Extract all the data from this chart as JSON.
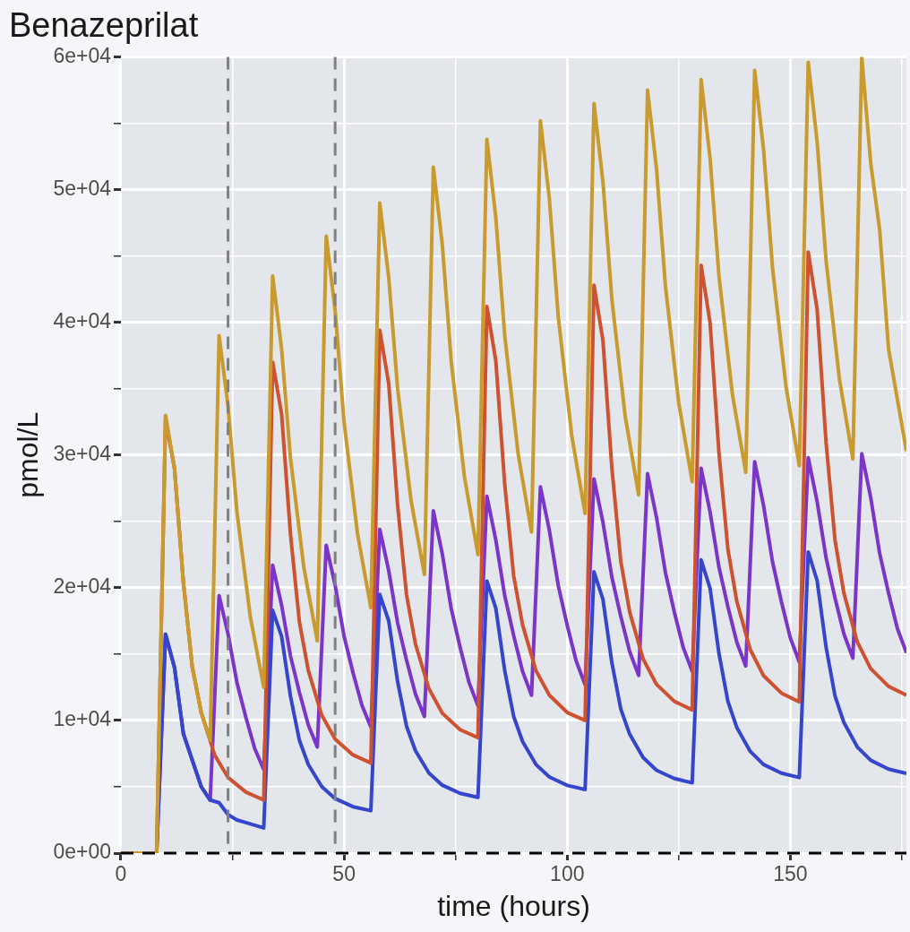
{
  "chart_data": {
    "type": "line",
    "title": "Benazeprilat",
    "xlabel": "time (hours)",
    "ylabel": "pmol/L",
    "xlim": [
      0,
      176
    ],
    "ylim": [
      0,
      60000
    ],
    "xticks": [
      0,
      {
        "value": 25,
        "label": null
      },
      50,
      {
        "value": 75,
        "label": null
      },
      100,
      {
        "value": 125,
        "label": null
      },
      150,
      {
        "value": 175,
        "label": null
      }
    ],
    "yticks": [
      {
        "value": 0,
        "label": "0e+00"
      },
      {
        "value": 5000,
        "label": null
      },
      {
        "value": 10000,
        "label": "1e+04"
      },
      {
        "value": 15000,
        "label": null
      },
      {
        "value": 20000,
        "label": "2e+04"
      },
      {
        "value": 25000,
        "label": null
      },
      {
        "value": 30000,
        "label": "3e+04"
      },
      {
        "value": 35000,
        "label": null
      },
      {
        "value": 40000,
        "label": "4e+04"
      },
      {
        "value": 45000,
        "label": null
      },
      {
        "value": 50000,
        "label": "5e+04"
      },
      {
        "value": 55000,
        "label": null
      },
      {
        "value": 60000,
        "label": "6e+04"
      }
    ],
    "grid": true,
    "ref_lines": [
      {
        "axis": "x",
        "value": 24,
        "color": "#808080",
        "line_style": "dashed"
      },
      {
        "axis": "x",
        "value": 48,
        "color": "#808080",
        "line_style": "dashed"
      },
      {
        "axis": "y",
        "value": 0,
        "color": "#000000",
        "line_style": "dashed"
      }
    ],
    "series": [
      {
        "color": "#c99a2e",
        "x": [
          0,
          8,
          10,
          12,
          14,
          16,
          18,
          20,
          22,
          24,
          26,
          29,
          32,
          34,
          36,
          38,
          41,
          44,
          46,
          48,
          50,
          53,
          56,
          58,
          60,
          62,
          65,
          68,
          70,
          72,
          74,
          77,
          80,
          82,
          84,
          86,
          89,
          92,
          94,
          96,
          98,
          101,
          104,
          106,
          108,
          110,
          113,
          116,
          118,
          120,
          122,
          125,
          128,
          130,
          132,
          134,
          137,
          140,
          142,
          144,
          146,
          149,
          152,
          154,
          156,
          158,
          161,
          164,
          166,
          168,
          170,
          172,
          176
        ],
        "values": [
          0,
          0,
          33000,
          29000,
          20400,
          14000,
          10600,
          8500,
          39000,
          33700,
          25700,
          17800,
          12500,
          43500,
          38000,
          29750,
          21500,
          16000,
          46500,
          40900,
          32500,
          24100,
          18500,
          49000,
          43400,
          35000,
          26600,
          21000,
          51700,
          45900,
          37100,
          28300,
          22500,
          53800,
          47900,
          39000,
          30100,
          24200,
          55200,
          49300,
          40400,
          31500,
          25600,
          56500,
          50600,
          41750,
          32900,
          27000,
          57500,
          51600,
          42750,
          33900,
          28000,
          58300,
          52400,
          43500,
          34600,
          28700,
          59000,
          53000,
          44100,
          35200,
          29200,
          59600,
          53600,
          44650,
          35700,
          29700,
          60000,
          52000,
          47000,
          38000,
          30300
        ]
      },
      {
        "color": "#cf5230",
        "x": [
          0,
          8,
          10,
          12,
          14,
          16,
          18,
          21,
          24,
          28,
          32,
          34,
          36,
          38,
          40,
          42,
          45,
          48,
          52,
          56,
          58,
          60,
          62,
          64,
          66,
          69,
          72,
          76,
          80,
          82,
          84,
          86,
          88,
          90,
          93,
          96,
          100,
          104,
          106,
          108,
          110,
          112,
          114,
          117,
          120,
          124,
          128,
          130,
          132,
          134,
          136,
          138,
          141,
          144,
          148,
          152,
          154,
          156,
          158,
          160,
          162,
          165,
          168,
          172,
          176
        ],
        "values": [
          0,
          0,
          32700,
          29000,
          20400,
          14000,
          10600,
          7400,
          5700,
          4600,
          4000,
          37000,
          33100,
          24000,
          17400,
          13750,
          10400,
          8600,
          7400,
          6800,
          39400,
          35400,
          26200,
          19450,
          15750,
          12400,
          10550,
          9300,
          8700,
          41200,
          37100,
          27800,
          20900,
          17200,
          13750,
          11900,
          10600,
          10000,
          42800,
          38640,
          29040,
          22000,
          18160,
          14640,
          12720,
          11440,
          10800,
          44300,
          40000,
          30150,
          22900,
          18970,
          15350,
          13370,
          12060,
          11400,
          45300,
          40960,
          30940,
          23590,
          19580,
          15910,
          13900,
          12570,
          11900
        ]
      },
      {
        "color": "#3546cc",
        "x": [
          0,
          8,
          10,
          12,
          14,
          16,
          18,
          20,
          22,
          24,
          26,
          28,
          30,
          32,
          34,
          36,
          38,
          40,
          42,
          45,
          48,
          52,
          56,
          58,
          60,
          62,
          64,
          66,
          69,
          72,
          76,
          80,
          82,
          84,
          86,
          88,
          90,
          93,
          96,
          100,
          104,
          106,
          108,
          110,
          112,
          114,
          117,
          120,
          124,
          128,
          130,
          132,
          134,
          136,
          138,
          141,
          144,
          148,
          152,
          154,
          156,
          158,
          160,
          162,
          165,
          168,
          172,
          176
        ],
        "values": [
          0,
          0,
          16500,
          14000,
          9000,
          7000,
          5000,
          4000,
          3800,
          2900,
          2500,
          2300,
          2100,
          1900,
          18300,
          16340,
          11810,
          8490,
          6670,
          5010,
          4110,
          3500,
          3200,
          19500,
          17510,
          12920,
          9560,
          7720,
          6040,
          5120,
          4510,
          4200,
          20500,
          18460,
          13750,
          10300,
          8410,
          6680,
          5740,
          5110,
          4800,
          21200,
          19130,
          14360,
          10870,
          8960,
          7210,
          6250,
          5620,
          5300,
          22100,
          19970,
          15050,
          11440,
          9470,
          7670,
          6680,
          6030,
          5700,
          22700,
          20530,
          15520,
          11850,
          9840,
          8000,
          7000,
          6330,
          6000
        ]
      },
      {
        "color": "#7b35c8",
        "x": [
          0,
          8,
          10,
          12,
          14,
          16,
          18,
          20,
          22,
          24,
          26,
          28,
          30,
          32,
          34,
          36,
          38,
          40,
          42,
          44,
          46,
          48,
          50,
          52,
          54,
          56,
          58,
          60,
          62,
          64,
          66,
          68,
          70,
          72,
          74,
          76,
          78,
          80,
          82,
          84,
          86,
          88,
          90,
          92,
          94,
          96,
          98,
          100,
          102,
          104,
          106,
          108,
          110,
          112,
          114,
          116,
          118,
          120,
          122,
          124,
          126,
          128,
          130,
          132,
          134,
          136,
          138,
          140,
          142,
          144,
          146,
          148,
          150,
          152,
          154,
          156,
          158,
          160,
          162,
          164,
          166,
          168,
          170,
          172,
          174,
          176
        ],
        "values": [
          0,
          0,
          16500,
          14000,
          9000,
          7000,
          5000,
          4000,
          19400,
          16520,
          12850,
          10230,
          7870,
          6300,
          21700,
          18690,
          14850,
          12110,
          9640,
          8000,
          23200,
          20190,
          16350,
          13610,
          11140,
          9500,
          24400,
          21300,
          17350,
          14530,
          11990,
          10300,
          25800,
          22570,
          18450,
          15510,
          12860,
          11100,
          26900,
          23600,
          19400,
          16400,
          13700,
          11900,
          27600,
          24320,
          20150,
          17170,
          14490,
          12700,
          28200,
          24940,
          20800,
          17840,
          15180,
          13400,
          28600,
          25320,
          21150,
          18170,
          15490,
          13700,
          29000,
          25720,
          21550,
          18570,
          15890,
          14100,
          29500,
          26180,
          21950,
          18930,
          16210,
          14400,
          29800,
          26480,
          22250,
          19230,
          16510,
          14700,
          30100,
          26800,
          22600,
          19600,
          16900,
          15100
        ]
      }
    ]
  }
}
